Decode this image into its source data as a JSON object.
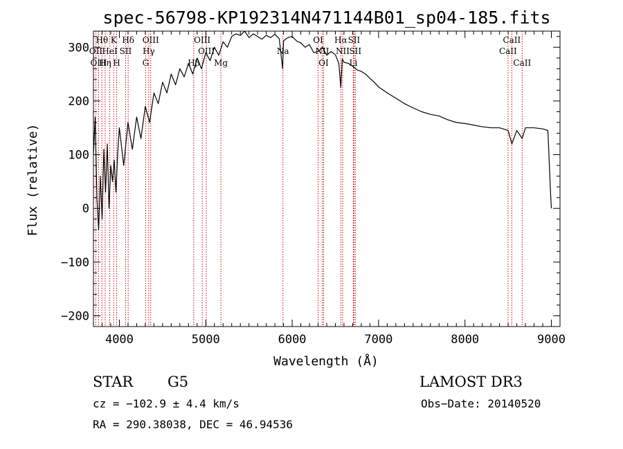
{
  "chart_data": {
    "type": "line",
    "title": "spec-56798-KP192314N471144B01_sp04-185.fits",
    "xlabel": "Wavelength (Å)",
    "ylabel": "Flux (relative)",
    "xlim": [
      3700,
      9100
    ],
    "ylim": [
      -220,
      330
    ],
    "xticks": [
      4000,
      5000,
      6000,
      7000,
      8000,
      9000
    ],
    "yticks": [
      -200,
      -100,
      0,
      100,
      200,
      300
    ],
    "grid": false,
    "series": [
      {
        "x": [
          3700,
          3720,
          3740,
          3760,
          3780,
          3800,
          3820,
          3840,
          3860,
          3880,
          3900,
          3920,
          3940,
          3960,
          3980,
          4000,
          4050,
          4100,
          4150,
          4200,
          4250,
          4300,
          4350,
          4400,
          4450,
          4500,
          4550,
          4600,
          4650,
          4700,
          4750,
          4800,
          4850,
          4900,
          4950,
          5000,
          5050,
          5100,
          5150,
          5200,
          5250,
          5300,
          5350,
          5400,
          5450,
          5500,
          5550,
          5600,
          5650,
          5700,
          5750,
          5800,
          5850,
          5890,
          5900,
          5950,
          6000,
          6050,
          6100,
          6150,
          6200,
          6250,
          6300,
          6350,
          6400,
          6450,
          6500,
          6540,
          6563,
          6580,
          6600,
          6650,
          6700,
          6750,
          6800,
          6850,
          6900,
          6950,
          7000,
          7100,
          7200,
          7300,
          7400,
          7500,
          7600,
          7700,
          7800,
          7900,
          8000,
          8100,
          8200,
          8300,
          8400,
          8500,
          8542,
          8600,
          8662,
          8700,
          8800,
          8900,
          8960,
          8990,
          9000
        ],
        "y": [
          100,
          170,
          20,
          -40,
          60,
          -20,
          110,
          30,
          120,
          0,
          80,
          50,
          90,
          30,
          100,
          150,
          80,
          160,
          110,
          170,
          130,
          190,
          160,
          215,
          195,
          235,
          215,
          250,
          230,
          260,
          245,
          270,
          250,
          280,
          260,
          290,
          275,
          300,
          285,
          310,
          300,
          320,
          325,
          322,
          330,
          318,
          325,
          320,
          315,
          322,
          318,
          324,
          316,
          260,
          312,
          318,
          320,
          312,
          308,
          300,
          305,
          290,
          292,
          300,
          285,
          292,
          286,
          270,
          225,
          278,
          272,
          270,
          265,
          258,
          255,
          250,
          242,
          235,
          226,
          215,
          205,
          195,
          187,
          180,
          175,
          172,
          165,
          160,
          158,
          155,
          152,
          150,
          150,
          145,
          120,
          145,
          130,
          150,
          150,
          148,
          145,
          30,
          0
        ]
      }
    ],
    "line_markers": [
      {
        "label": "Hθ",
        "x": 3798,
        "row": 1
      },
      {
        "label": "OII",
        "x": 3727,
        "row": 2
      },
      {
        "label": "OIII",
        "x": 3760,
        "row": 3
      },
      {
        "label": "K",
        "x": 3934,
        "row": 1
      },
      {
        "label": "HeI",
        "x": 3889,
        "row": 2
      },
      {
        "label": "Hη",
        "x": 3835,
        "row": 3
      },
      {
        "label": "H",
        "x": 3969,
        "row": 3
      },
      {
        "label": "SII",
        "x": 4072,
        "row": 2
      },
      {
        "label": "Hδ",
        "x": 4102,
        "row": 1
      },
      {
        "label": "OIII",
        "x": 4363,
        "row": 1
      },
      {
        "label": "Hγ",
        "x": 4340,
        "row": 2
      },
      {
        "label": "G",
        "x": 4304,
        "row": 3
      },
      {
        "label": "OIII",
        "x": 4959,
        "row": 1
      },
      {
        "label": "OIII",
        "x": 5007,
        "row": 2
      },
      {
        "label": "Hβ",
        "x": 4861,
        "row": 3
      },
      {
        "label": "Mg",
        "x": 5175,
        "row": 3
      },
      {
        "label": "Na",
        "x": 5893,
        "row": 2
      },
      {
        "label": "OI",
        "x": 6300,
        "row": 1
      },
      {
        "label": "NII",
        "x": 6348,
        "row": 2
      },
      {
        "label": "OI",
        "x": 6364,
        "row": 3
      },
      {
        "label": "Hα",
        "x": 6563,
        "row": 1
      },
      {
        "label": "NII",
        "x": 6584,
        "row": 2
      },
      {
        "label": "Li",
        "x": 6708,
        "row": 3
      },
      {
        "label": "SII",
        "x": 6716,
        "row": 1
      },
      {
        "label": "SII",
        "x": 6731,
        "row": 2
      },
      {
        "label": "CaII",
        "x": 8542,
        "row": 1
      },
      {
        "label": "CaII",
        "x": 8498,
        "row": 2
      },
      {
        "label": "CaII",
        "x": 8662,
        "row": 3
      }
    ]
  },
  "info": {
    "class": "STAR",
    "subclass": "G5",
    "survey": "LAMOST DR3",
    "cz": "cz = −102.9 ± 4.4 km/s",
    "obs_date": "Obs−Date: 20140520",
    "coords": "RA = 290.38038, DEC =  46.94536"
  },
  "colors": {
    "spectrum": "#000000",
    "marker": "#cc0000",
    "axis": "#000000"
  }
}
